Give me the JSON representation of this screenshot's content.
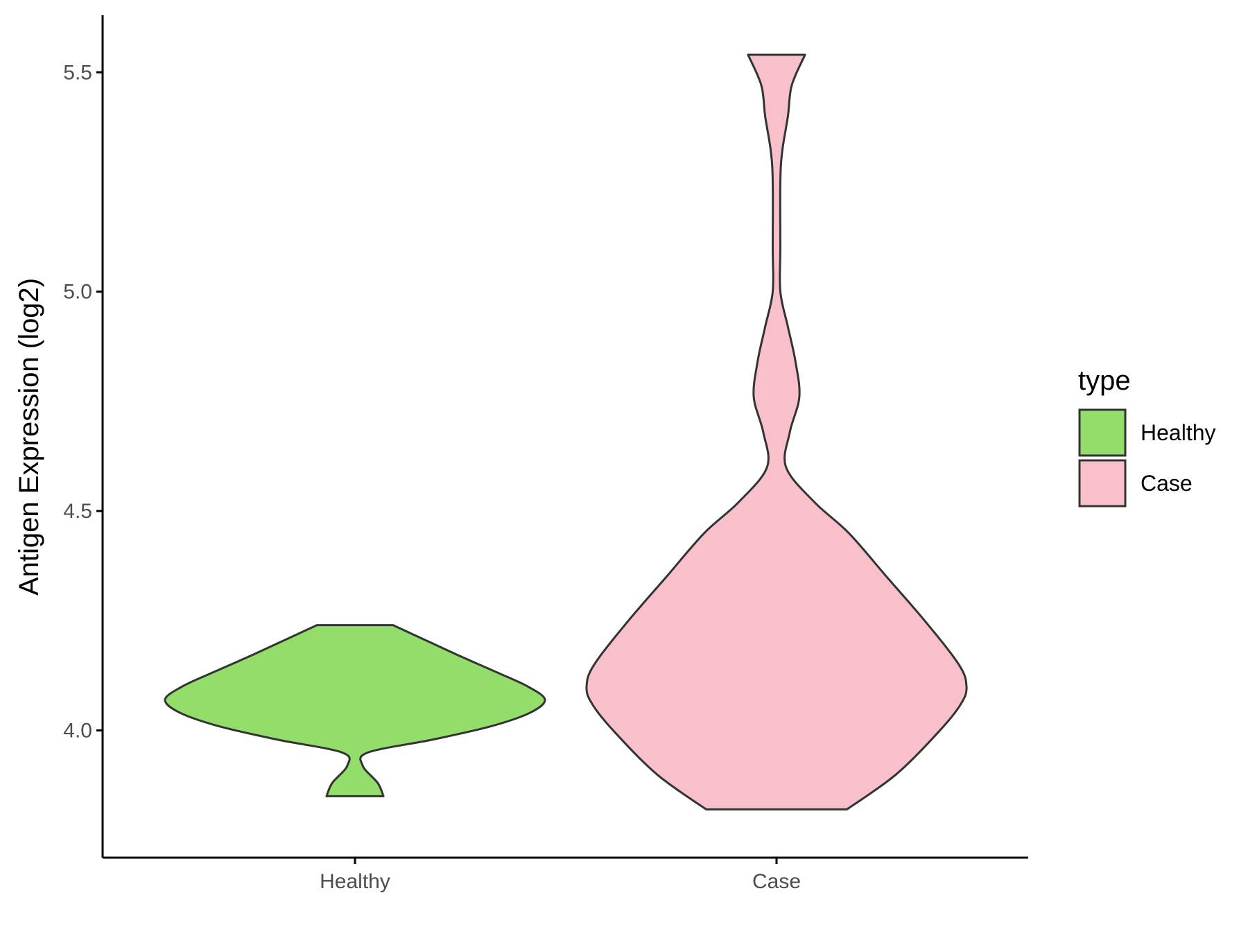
{
  "chart_data": {
    "type": "violin",
    "title": "",
    "xlabel": "",
    "ylabel": "Antigen Expression (log2)",
    "ylim": [
      3.71,
      5.63
    ],
    "yticks": [
      4.0,
      4.5,
      5.0,
      5.5
    ],
    "ytick_labels": [
      "4.0",
      "4.5",
      "5.0",
      "5.5"
    ],
    "categories": [
      "Healthy",
      "Case"
    ],
    "grid": false,
    "legend": {
      "title": "type",
      "position": "right",
      "entries": [
        "Healthy",
        "Case"
      ]
    },
    "colors": {
      "Healthy": "#93dd6a",
      "Case": "#f7c0cb",
      "outline": "#333333"
    },
    "series": [
      {
        "category": "Healthy",
        "min": 3.85,
        "max": 4.24,
        "density_profile": [
          [
            3.85,
            0.15
          ],
          [
            3.88,
            0.12
          ],
          [
            3.92,
            0.04
          ],
          [
            3.95,
            0.07
          ],
          [
            3.98,
            0.42
          ],
          [
            4.01,
            0.72
          ],
          [
            4.04,
            0.92
          ],
          [
            4.07,
            1.0
          ],
          [
            4.1,
            0.91
          ],
          [
            4.13,
            0.76
          ],
          [
            4.17,
            0.55
          ],
          [
            4.21,
            0.35
          ],
          [
            4.24,
            0.2
          ]
        ]
      },
      {
        "category": "Case",
        "min": 3.82,
        "max": 5.54,
        "density_profile": [
          [
            3.82,
            0.37
          ],
          [
            3.9,
            0.63
          ],
          [
            4.0,
            0.86
          ],
          [
            4.06,
            0.97
          ],
          [
            4.1,
            1.0
          ],
          [
            4.15,
            0.96
          ],
          [
            4.25,
            0.78
          ],
          [
            4.35,
            0.58
          ],
          [
            4.45,
            0.38
          ],
          [
            4.52,
            0.2
          ],
          [
            4.6,
            0.05
          ],
          [
            4.68,
            0.07
          ],
          [
            4.76,
            0.12
          ],
          [
            4.84,
            0.1
          ],
          [
            4.92,
            0.06
          ],
          [
            5.0,
            0.02
          ],
          [
            5.1,
            0.02
          ],
          [
            5.25,
            0.02
          ],
          [
            5.32,
            0.03
          ],
          [
            5.4,
            0.06
          ],
          [
            5.47,
            0.08
          ],
          [
            5.54,
            0.15
          ]
        ]
      }
    ]
  }
}
